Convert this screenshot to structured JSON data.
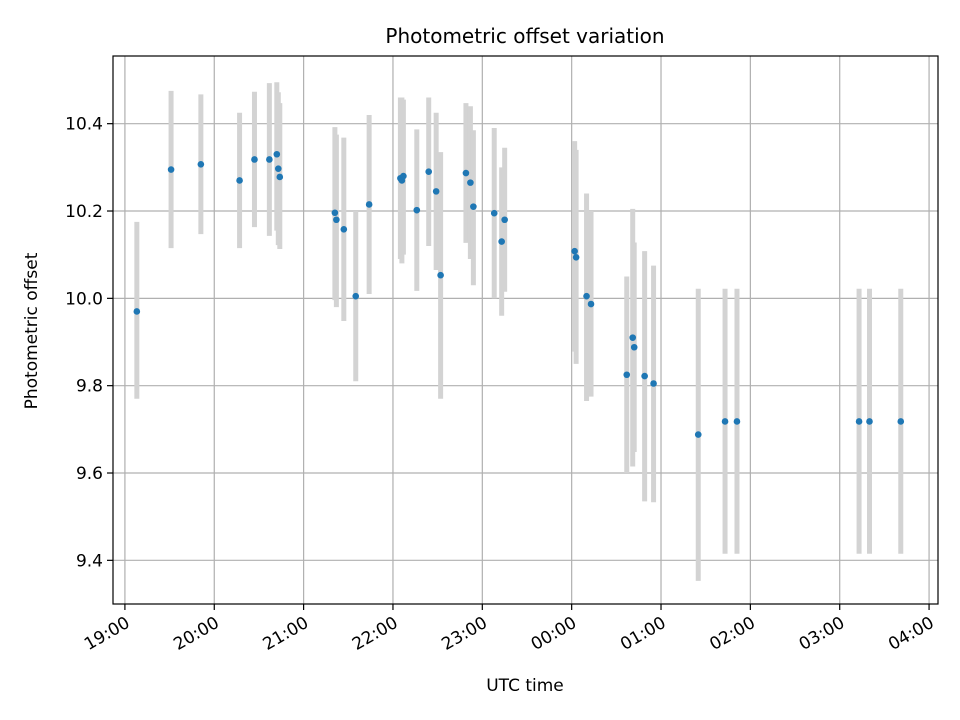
{
  "chart_data": {
    "type": "scatter",
    "title": "Photometric offset variation",
    "xlabel": "UTC time",
    "ylabel": "Photometric offset",
    "x_unit": "UTC time (hours after 19:00)",
    "xlim": [
      "18:52",
      "04:06"
    ],
    "ylim": [
      9.3,
      10.555
    ],
    "x_ticks": [
      "19:00",
      "20:00",
      "21:00",
      "22:00",
      "23:00",
      "00:00",
      "01:00",
      "02:00",
      "03:00",
      "04:00"
    ],
    "y_ticks": [
      9.4,
      9.6,
      9.8,
      10.0,
      10.2,
      10.4
    ],
    "grid": true,
    "colors": {
      "point": "#1f77b4",
      "errorbar": "#d3d3d3",
      "grid": "#b0b0b0"
    },
    "series": [
      {
        "points": [
          {
            "x": "19:08",
            "y": 9.97,
            "ymin": 9.77,
            "ymax": 10.175
          },
          {
            "x": "19:31",
            "y": 10.295,
            "ymin": 10.115,
            "ymax": 10.475
          },
          {
            "x": "19:51",
            "y": 10.307,
            "ymin": 10.147,
            "ymax": 10.467
          },
          {
            "x": "20:17",
            "y": 10.27,
            "ymin": 10.115,
            "ymax": 10.425
          },
          {
            "x": "20:27",
            "y": 10.318,
            "ymin": 10.163,
            "ymax": 10.473
          },
          {
            "x": "20:37",
            "y": 10.318,
            "ymin": 10.143,
            "ymax": 10.493
          },
          {
            "x": "20:42",
            "y": 10.33,
            "ymin": 10.155,
            "ymax": 10.495
          },
          {
            "x": "20:43",
            "y": 10.297,
            "ymin": 10.122,
            "ymax": 10.472
          },
          {
            "x": "20:44",
            "y": 10.278,
            "ymin": 10.113,
            "ymax": 10.447
          },
          {
            "x": "21:21",
            "y": 10.196,
            "ymin": 9.996,
            "ymax": 10.392
          },
          {
            "x": "21:22",
            "y": 10.18,
            "ymin": 9.98,
            "ymax": 10.375
          },
          {
            "x": "21:27",
            "y": 10.158,
            "ymin": 9.948,
            "ymax": 10.368
          },
          {
            "x": "21:35",
            "y": 10.005,
            "ymin": 9.81,
            "ymax": 10.2
          },
          {
            "x": "21:44",
            "y": 10.215,
            "ymin": 10.01,
            "ymax": 10.42
          },
          {
            "x": "22:05",
            "y": 10.275,
            "ymin": 10.09,
            "ymax": 10.46
          },
          {
            "x": "22:06",
            "y": 10.27,
            "ymin": 10.08,
            "ymax": 10.46
          },
          {
            "x": "22:07",
            "y": 10.28,
            "ymin": 10.1,
            "ymax": 10.455
          },
          {
            "x": "22:16",
            "y": 10.202,
            "ymin": 10.017,
            "ymax": 10.387
          },
          {
            "x": "22:24",
            "y": 10.29,
            "ymin": 10.12,
            "ymax": 10.46
          },
          {
            "x": "22:29",
            "y": 10.245,
            "ymin": 10.065,
            "ymax": 10.425
          },
          {
            "x": "22:32",
            "y": 10.053,
            "ymin": 9.77,
            "ymax": 10.335
          },
          {
            "x": "22:49",
            "y": 10.287,
            "ymin": 10.127,
            "ymax": 10.447
          },
          {
            "x": "22:52",
            "y": 10.265,
            "ymin": 10.09,
            "ymax": 10.44
          },
          {
            "x": "22:54",
            "y": 10.21,
            "ymin": 10.03,
            "ymax": 10.385
          },
          {
            "x": "23:08",
            "y": 10.195,
            "ymin": 10.0,
            "ymax": 10.39
          },
          {
            "x": "23:13",
            "y": 10.13,
            "ymin": 9.96,
            "ymax": 10.3
          },
          {
            "x": "23:15",
            "y": 10.18,
            "ymin": 10.015,
            "ymax": 10.345
          },
          {
            "x": "00:02",
            "y": 10.108,
            "ymin": 9.878,
            "ymax": 10.36
          },
          {
            "x": "00:03",
            "y": 10.094,
            "ymin": 9.85,
            "ymax": 10.34
          },
          {
            "x": "00:10",
            "y": 10.005,
            "ymin": 9.765,
            "ymax": 10.24
          },
          {
            "x": "00:13",
            "y": 9.987,
            "ymin": 9.775,
            "ymax": 10.2
          },
          {
            "x": "00:37",
            "y": 9.825,
            "ymin": 9.6,
            "ymax": 10.05
          },
          {
            "x": "00:41",
            "y": 9.91,
            "ymin": 9.615,
            "ymax": 10.205
          },
          {
            "x": "00:42",
            "y": 9.888,
            "ymin": 9.648,
            "ymax": 10.128
          },
          {
            "x": "00:49",
            "y": 9.822,
            "ymin": 9.535,
            "ymax": 10.108
          },
          {
            "x": "00:55",
            "y": 9.805,
            "ymin": 9.533,
            "ymax": 10.075
          },
          {
            "x": "01:25",
            "y": 9.688,
            "ymin": 9.353,
            "ymax": 10.022
          },
          {
            "x": "01:43",
            "y": 9.718,
            "ymin": 9.415,
            "ymax": 10.022
          },
          {
            "x": "01:51",
            "y": 9.718,
            "ymin": 9.415,
            "ymax": 10.022
          },
          {
            "x": "03:13",
            "y": 9.718,
            "ymin": 9.415,
            "ymax": 10.022
          },
          {
            "x": "03:20",
            "y": 9.718,
            "ymin": 9.415,
            "ymax": 10.022
          },
          {
            "x": "03:41",
            "y": 9.718,
            "ymin": 9.415,
            "ymax": 10.022
          }
        ]
      }
    ]
  }
}
